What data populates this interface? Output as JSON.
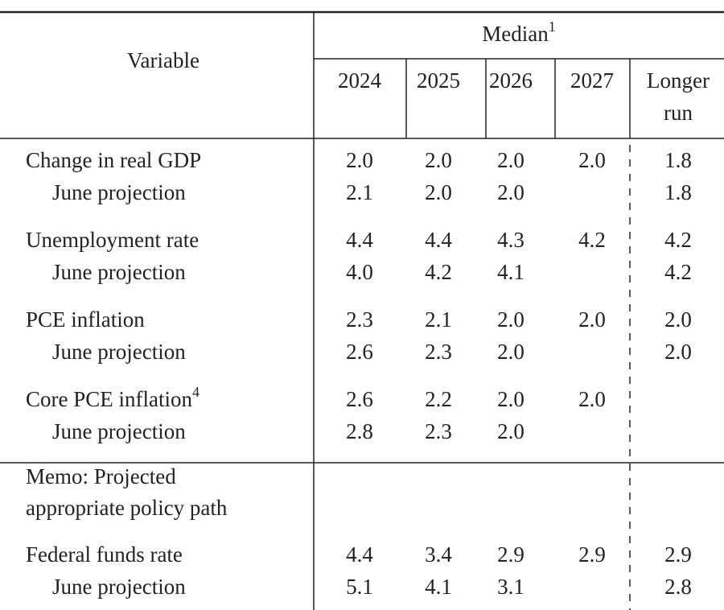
{
  "table": {
    "header": {
      "variable": "Variable",
      "median": "Median",
      "median_note": "1",
      "columns": [
        "2024",
        "2025",
        "2026",
        "2027"
      ],
      "longer_run": [
        "Longer",
        "run"
      ]
    },
    "sections": [
      {
        "groups": [
          {
            "label": "Change in real GDP",
            "values": [
              "2.0",
              "2.0",
              "2.0",
              "2.0",
              "1.8"
            ],
            "projection": {
              "label": "June projection",
              "values": [
                "2.1",
                "2.0",
                "2.0",
                null,
                "1.8"
              ]
            }
          },
          {
            "label": "Unemployment rate",
            "values": [
              "4.4",
              "4.4",
              "4.3",
              "4.2",
              "4.2"
            ],
            "projection": {
              "label": "June projection",
              "values": [
                "4.0",
                "4.2",
                "4.1",
                null,
                "4.2"
              ]
            }
          },
          {
            "label": "PCE inflation",
            "values": [
              "2.3",
              "2.1",
              "2.0",
              "2.0",
              "2.0"
            ],
            "projection": {
              "label": "June projection",
              "values": [
                "2.6",
                "2.3",
                "2.0",
                null,
                "2.0"
              ]
            }
          },
          {
            "label": "Core PCE inflation",
            "note": "4",
            "values": [
              "2.6",
              "2.2",
              "2.0",
              "2.0",
              null
            ],
            "projection": {
              "label": "June projection",
              "values": [
                "2.8",
                "2.3",
                "2.0",
                null,
                null
              ]
            }
          }
        ]
      },
      {
        "memo": [
          "Memo: Projected",
          "appropriate policy path"
        ],
        "groups": [
          {
            "label": "Federal funds rate",
            "values": [
              "4.4",
              "3.4",
              "2.9",
              "2.9",
              "2.9"
            ],
            "projection": {
              "label": "June projection",
              "values": [
                "5.1",
                "4.1",
                "3.1",
                null,
                "2.8"
              ]
            }
          }
        ]
      }
    ]
  }
}
